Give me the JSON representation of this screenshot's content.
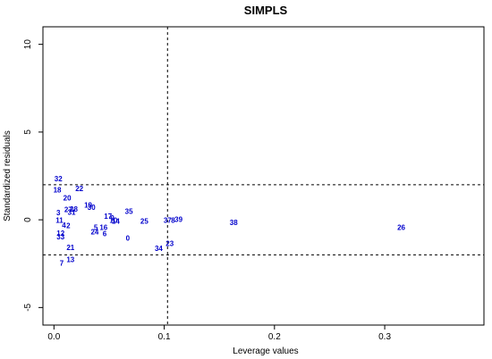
{
  "chart_data": {
    "type": "scatter",
    "title": "SIMPLS",
    "xlabel": "Leverage values",
    "ylabel": "Standardized residuals",
    "xlim": [
      -0.01,
      0.39
    ],
    "ylim": [
      -6,
      11
    ],
    "xticks": [
      "0.0",
      "0.1",
      "0.2",
      "0.3"
    ],
    "xtick_values": [
      0,
      0.1,
      0.2,
      0.3
    ],
    "yticks": [
      "-5",
      "0",
      "5",
      "10"
    ],
    "ytick_values": [
      -5,
      0,
      5,
      10
    ],
    "ref_lines": {
      "vertical": [
        0.103
      ],
      "horizontal": [
        2,
        -2
      ]
    },
    "point_color": "#0000cc",
    "points": [
      {
        "label": "32",
        "x": 0.004,
        "y": 2.35
      },
      {
        "label": "18",
        "x": 0.003,
        "y": 1.72
      },
      {
        "label": "22",
        "x": 0.023,
        "y": 1.78
      },
      {
        "label": "20",
        "x": 0.012,
        "y": 1.25
      },
      {
        "label": "19",
        "x": 0.031,
        "y": 0.85
      },
      {
        "label": "30",
        "x": 0.034,
        "y": 0.72
      },
      {
        "label": "27",
        "x": 0.013,
        "y": 0.6
      },
      {
        "label": "28",
        "x": 0.018,
        "y": 0.62
      },
      {
        "label": "31",
        "x": 0.016,
        "y": 0.45
      },
      {
        "label": "3",
        "x": 0.004,
        "y": 0.42
      },
      {
        "label": "35",
        "x": 0.068,
        "y": 0.48
      },
      {
        "label": "17",
        "x": 0.049,
        "y": 0.22
      },
      {
        "label": "9",
        "x": 0.053,
        "y": 0.12
      },
      {
        "label": "10",
        "x": 0.054,
        "y": -0.02
      },
      {
        "label": "14",
        "x": 0.056,
        "y": -0.08
      },
      {
        "label": "25",
        "x": 0.082,
        "y": -0.08
      },
      {
        "label": "11",
        "x": 0.005,
        "y": -0.02
      },
      {
        "label": "2",
        "x": 0.013,
        "y": -0.32
      },
      {
        "label": "37",
        "x": 0.103,
        "y": -0.02
      },
      {
        "label": "8",
        "x": 0.108,
        "y": -0.02
      },
      {
        "label": "39",
        "x": 0.113,
        "y": 0.02
      },
      {
        "label": "38",
        "x": 0.163,
        "y": -0.15
      },
      {
        "label": "26",
        "x": 0.315,
        "y": -0.42
      },
      {
        "label": "4",
        "x": 0.009,
        "y": -0.3
      },
      {
        "label": "5",
        "x": 0.038,
        "y": -0.42
      },
      {
        "label": "16",
        "x": 0.045,
        "y": -0.42
      },
      {
        "label": "24",
        "x": 0.037,
        "y": -0.68
      },
      {
        "label": "6",
        "x": 0.046,
        "y": -0.78
      },
      {
        "label": "12",
        "x": 0.006,
        "y": -0.75
      },
      {
        "label": "33",
        "x": 0.006,
        "y": -0.95
      },
      {
        "label": "0",
        "x": 0.067,
        "y": -1.05
      },
      {
        "label": "23",
        "x": 0.105,
        "y": -1.35
      },
      {
        "label": "34",
        "x": 0.095,
        "y": -1.62
      },
      {
        "label": "21",
        "x": 0.015,
        "y": -1.58
      },
      {
        "label": "13",
        "x": 0.015,
        "y": -2.25
      },
      {
        "label": "7",
        "x": 0.007,
        "y": -2.45
      }
    ]
  }
}
